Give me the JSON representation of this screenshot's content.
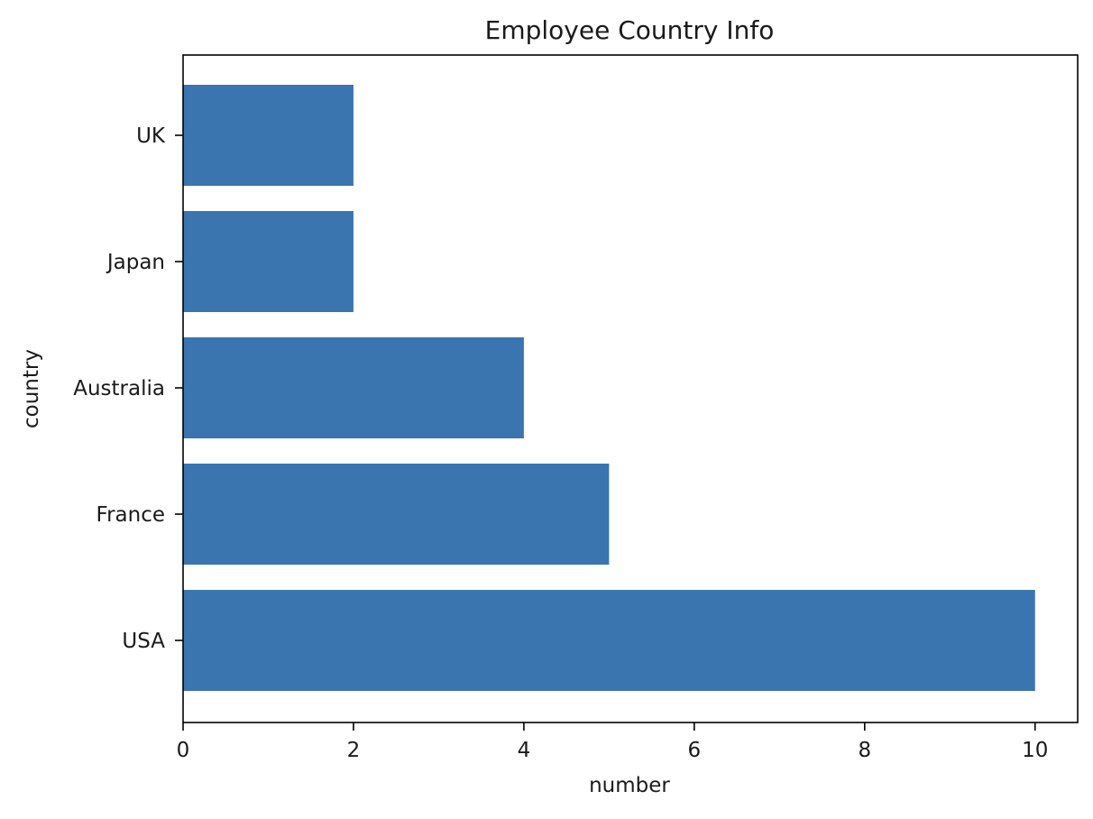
{
  "chart_data": {
    "type": "bar",
    "orientation": "horizontal",
    "title": "Employee Country Info",
    "xlabel": "number",
    "ylabel": "country",
    "categories": [
      "USA",
      "France",
      "Australia",
      "Japan",
      "UK"
    ],
    "values": [
      10,
      5,
      4,
      2,
      2
    ],
    "xlim": [
      0,
      10.5
    ],
    "xticks": [
      0,
      2,
      4,
      6,
      8,
      10
    ],
    "grid": false,
    "legend": "none",
    "bar_color": "#3a75af"
  }
}
